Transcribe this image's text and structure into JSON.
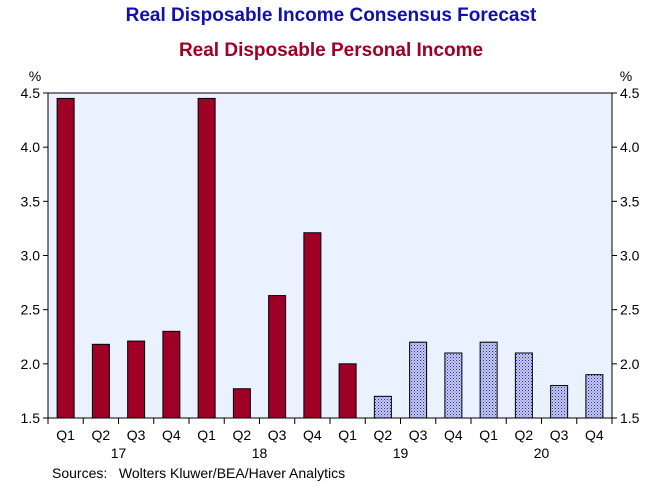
{
  "chart_data": {
    "type": "bar",
    "title": "Real Disposable Income Consensus Forecast",
    "subtitle": "Real Disposable Personal Income",
    "ylabel_left": "%",
    "ylabel_right": "%",
    "ylim": [
      1.5,
      4.5
    ],
    "yticks": [
      "1.5",
      "2.0",
      "2.5",
      "3.0",
      "3.5",
      "4.0",
      "4.5"
    ],
    "categories": [
      "Q1",
      "Q2",
      "Q3",
      "Q4",
      "Q1",
      "Q2",
      "Q3",
      "Q4",
      "Q1",
      "Q2",
      "Q3",
      "Q4",
      "Q1",
      "Q2",
      "Q3",
      "Q4"
    ],
    "years": [
      "17",
      "18",
      "19",
      "20"
    ],
    "values": [
      4.45,
      2.18,
      2.21,
      2.3,
      4.45,
      1.77,
      2.63,
      3.21,
      2.0,
      1.7,
      2.2,
      2.1,
      2.2,
      2.1,
      1.8,
      1.9
    ],
    "series_kind": [
      "actual",
      "actual",
      "actual",
      "actual",
      "actual",
      "actual",
      "actual",
      "actual",
      "actual",
      "forecast",
      "forecast",
      "forecast",
      "forecast",
      "forecast",
      "forecast",
      "forecast"
    ],
    "colors": {
      "actual": "#9e0026",
      "forecast_fill": "#b0b8e8",
      "forecast_pattern": "#2020b0",
      "plot_bg": "#eaf2ff"
    },
    "grid": false
  },
  "source": {
    "label": "Sources:",
    "text": "Wolters Kluwer/BEA/Haver Analytics"
  }
}
